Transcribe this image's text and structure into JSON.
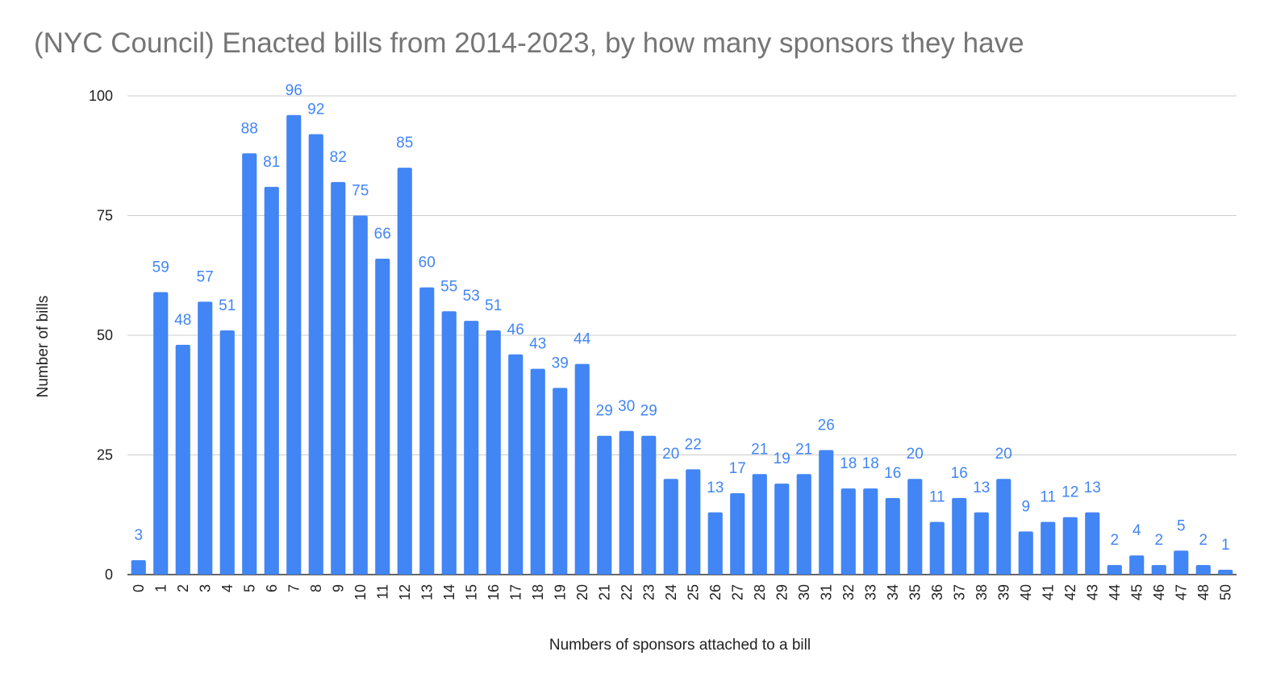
{
  "chart_data": {
    "type": "bar",
    "title": "(NYC Council) Enacted bills from 2014-2023, by how many sponsors they have",
    "xlabel": "Numbers of sponsors attached to a bill",
    "ylabel": "Number of bills",
    "ylim": [
      0,
      100
    ],
    "yticks": [
      "0",
      "25",
      "50",
      "75",
      "100"
    ],
    "grid": true,
    "legend": "none",
    "bar_color": "#4285f4",
    "label_color": "#4285f4",
    "categories": [
      "0",
      "1",
      "2",
      "3",
      "4",
      "5",
      "6",
      "7",
      "8",
      "9",
      "10",
      "11",
      "12",
      "13",
      "14",
      "15",
      "16",
      "17",
      "18",
      "19",
      "20",
      "21",
      "22",
      "23",
      "24",
      "25",
      "26",
      "27",
      "28",
      "29",
      "30",
      "31",
      "32",
      "33",
      "34",
      "35",
      "36",
      "37",
      "38",
      "39",
      "40",
      "41",
      "42",
      "43",
      "44",
      "45",
      "46",
      "47",
      "48",
      "50"
    ],
    "values": [
      3,
      59,
      48,
      57,
      51,
      88,
      81,
      96,
      92,
      82,
      75,
      66,
      85,
      60,
      55,
      53,
      51,
      46,
      43,
      39,
      44,
      29,
      30,
      29,
      20,
      22,
      13,
      17,
      21,
      19,
      21,
      26,
      18,
      18,
      16,
      20,
      11,
      16,
      13,
      20,
      9,
      11,
      12,
      13,
      2,
      4,
      2,
      5,
      2,
      1
    ]
  }
}
